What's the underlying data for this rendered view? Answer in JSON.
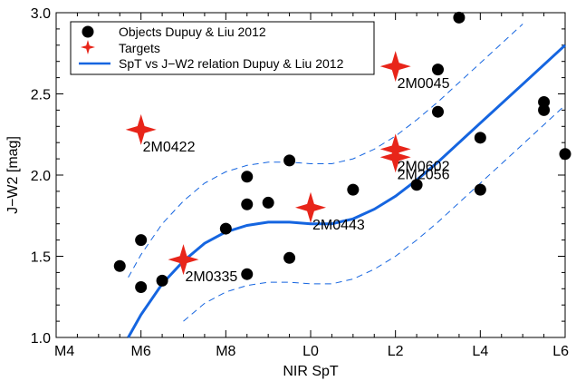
{
  "chart_data": {
    "type": "scatter",
    "xlabel": "NIR SpT",
    "ylabel": "J−W2 [mag]",
    "xlim": [
      4,
      16
    ],
    "ylim": [
      1.0,
      3.0
    ],
    "x_ticks": [
      {
        "value": 4,
        "label": "M4"
      },
      {
        "value": 6,
        "label": "M6"
      },
      {
        "value": 8,
        "label": "M8"
      },
      {
        "value": 10,
        "label": "L0"
      },
      {
        "value": 12,
        "label": "L2"
      },
      {
        "value": 14,
        "label": "L4"
      },
      {
        "value": 16,
        "label": "L6"
      }
    ],
    "y_ticks": [
      {
        "value": 1.0,
        "label": "1.0"
      },
      {
        "value": 1.5,
        "label": "1.5"
      },
      {
        "value": 2.0,
        "label": "2.0"
      },
      {
        "value": 2.5,
        "label": "2.5"
      },
      {
        "value": 3.0,
        "label": "3.0"
      }
    ],
    "legend_position": "top-left",
    "legend": [
      {
        "label": "Objects Dupuy & Liu 2012",
        "marker": "circle"
      },
      {
        "label": "Targets",
        "marker": "star"
      },
      {
        "label": "SpT vs J−W2 relation Dupuy & Liu 2012",
        "marker": "line"
      }
    ],
    "colors": {
      "objects": "#000000",
      "targets": "#e8251a",
      "relation": "#1565e0"
    },
    "objects": [
      {
        "x": 5.5,
        "y": 1.44
      },
      {
        "x": 6.0,
        "y": 1.6
      },
      {
        "x": 6.0,
        "y": 1.31
      },
      {
        "x": 6.5,
        "y": 1.35
      },
      {
        "x": 8.0,
        "y": 1.67
      },
      {
        "x": 8.5,
        "y": 1.99
      },
      {
        "x": 8.5,
        "y": 1.82
      },
      {
        "x": 8.5,
        "y": 1.39
      },
      {
        "x": 9.0,
        "y": 1.83
      },
      {
        "x": 9.5,
        "y": 2.09
      },
      {
        "x": 9.5,
        "y": 1.49
      },
      {
        "x": 11.0,
        "y": 1.91
      },
      {
        "x": 12.5,
        "y": 1.94
      },
      {
        "x": 13.0,
        "y": 2.65
      },
      {
        "x": 13.0,
        "y": 2.39
      },
      {
        "x": 13.5,
        "y": 2.97
      },
      {
        "x": 14.0,
        "y": 2.23
      },
      {
        "x": 14.0,
        "y": 1.91
      },
      {
        "x": 15.5,
        "y": 2.45
      },
      {
        "x": 15.5,
        "y": 2.4
      },
      {
        "x": 16.0,
        "y": 2.13
      }
    ],
    "targets": [
      {
        "name": "2M0422",
        "x": 6.0,
        "y": 2.28
      },
      {
        "name": "2M0335",
        "x": 7.0,
        "y": 1.48
      },
      {
        "name": "2M0443",
        "x": 10.0,
        "y": 1.8
      },
      {
        "name": "2M0045",
        "x": 12.0,
        "y": 2.67
      },
      {
        "name": "2M0602",
        "x": 12.0,
        "y": 2.16
      },
      {
        "name": "2M2056",
        "x": 12.0,
        "y": 2.11
      }
    ],
    "relation_curve": {
      "name": "SpT vs J−W2 relation Dupuy & Liu 2012",
      "x": [
        5.7,
        6.0,
        6.5,
        7.0,
        7.5,
        8.0,
        8.5,
        9.0,
        9.5,
        10.0,
        10.5,
        11.0,
        11.5,
        12.0,
        12.5,
        13.0,
        13.5,
        14.0,
        14.5,
        15.0,
        15.5,
        16.0
      ],
      "y": [
        1.0,
        1.14,
        1.33,
        1.47,
        1.58,
        1.65,
        1.69,
        1.71,
        1.71,
        1.7,
        1.7,
        1.73,
        1.79,
        1.87,
        1.97,
        2.08,
        2.2,
        2.32,
        2.44,
        2.56,
        2.68,
        2.8
      ],
      "scatter_band": 0.37
    }
  }
}
